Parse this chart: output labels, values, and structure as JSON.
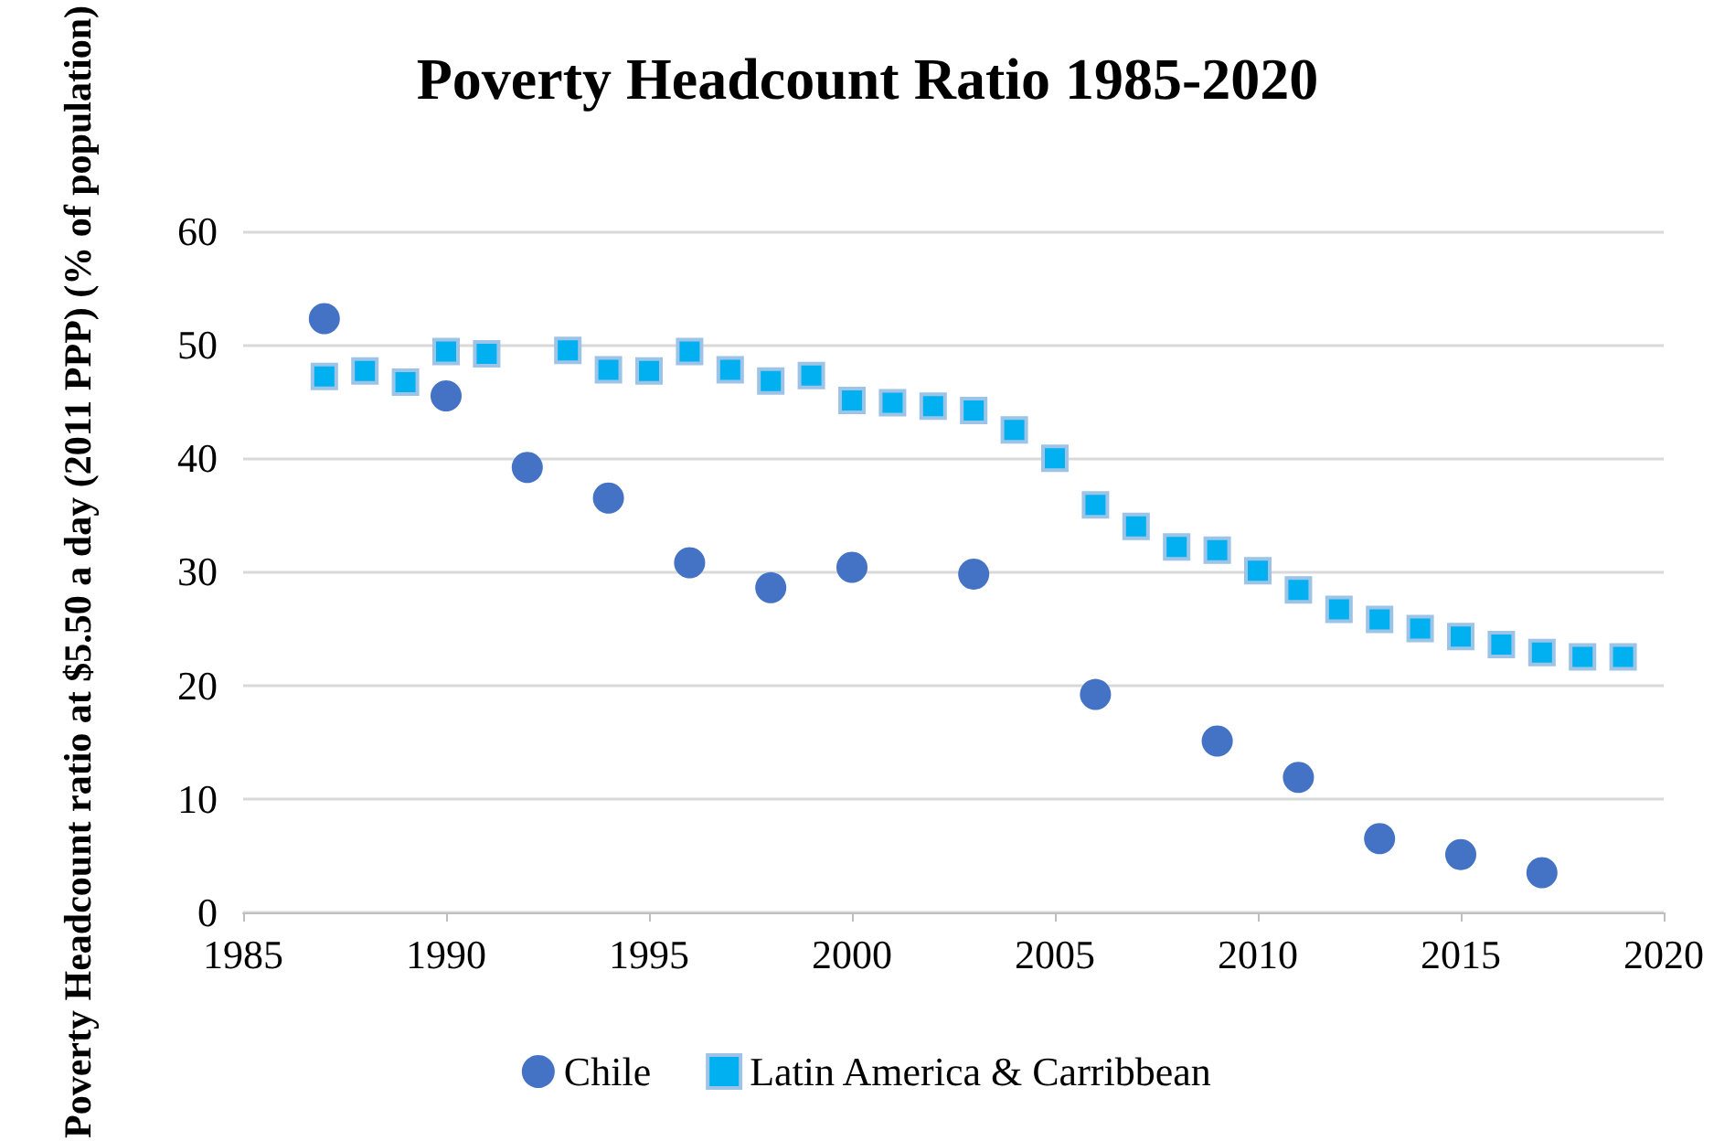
{
  "chart_data": {
    "type": "scatter",
    "title": "Poverty Headcount Ratio 1985-2020",
    "ylabel": "Poverty Headcount ratio at $5.50 a day (2011 PPP) (% of population)",
    "xlim": [
      1985,
      2020
    ],
    "xticks": [
      1985,
      1990,
      1995,
      2000,
      2005,
      2010,
      2015,
      2020
    ],
    "ylim": [
      0,
      60
    ],
    "yticks": [
      0,
      10,
      20,
      30,
      40,
      50,
      60
    ],
    "grid": "y",
    "legend": "bottom",
    "series": [
      {
        "name": "Chile",
        "color": "#4472c4",
        "marker": "circle",
        "x": [
          1987,
          1990,
          1992,
          1994,
          1996,
          1998,
          2000,
          2003,
          2006,
          2009,
          2011,
          2013,
          2015,
          2017
        ],
        "values": [
          52.3,
          45.5,
          39.2,
          36.5,
          30.8,
          28.6,
          30.4,
          29.8,
          19.2,
          15.1,
          11.9,
          6.5,
          5.1,
          3.5
        ]
      },
      {
        "name": "Latin America & Carribbean",
        "color": "#00b0f0",
        "marker": "square",
        "x": [
          1987,
          1988,
          1989,
          1990,
          1991,
          1993,
          1994,
          1995,
          1996,
          1997,
          1998,
          1999,
          2000,
          2001,
          2002,
          2003,
          2004,
          2005,
          2006,
          2007,
          2008,
          2009,
          2010,
          2011,
          2012,
          2013,
          2014,
          2015,
          2016,
          2017,
          2018,
          2019
        ],
        "values": [
          47.2,
          47.7,
          46.7,
          49.4,
          49.2,
          49.5,
          47.8,
          47.7,
          49.4,
          47.8,
          46.8,
          47.3,
          45.1,
          44.9,
          44.6,
          44.2,
          42.5,
          40.0,
          35.9,
          34.0,
          32.2,
          31.9,
          30.1,
          28.4,
          26.7,
          25.8,
          25.0,
          24.3,
          23.6,
          22.9,
          22.5,
          22.5
        ]
      }
    ]
  }
}
